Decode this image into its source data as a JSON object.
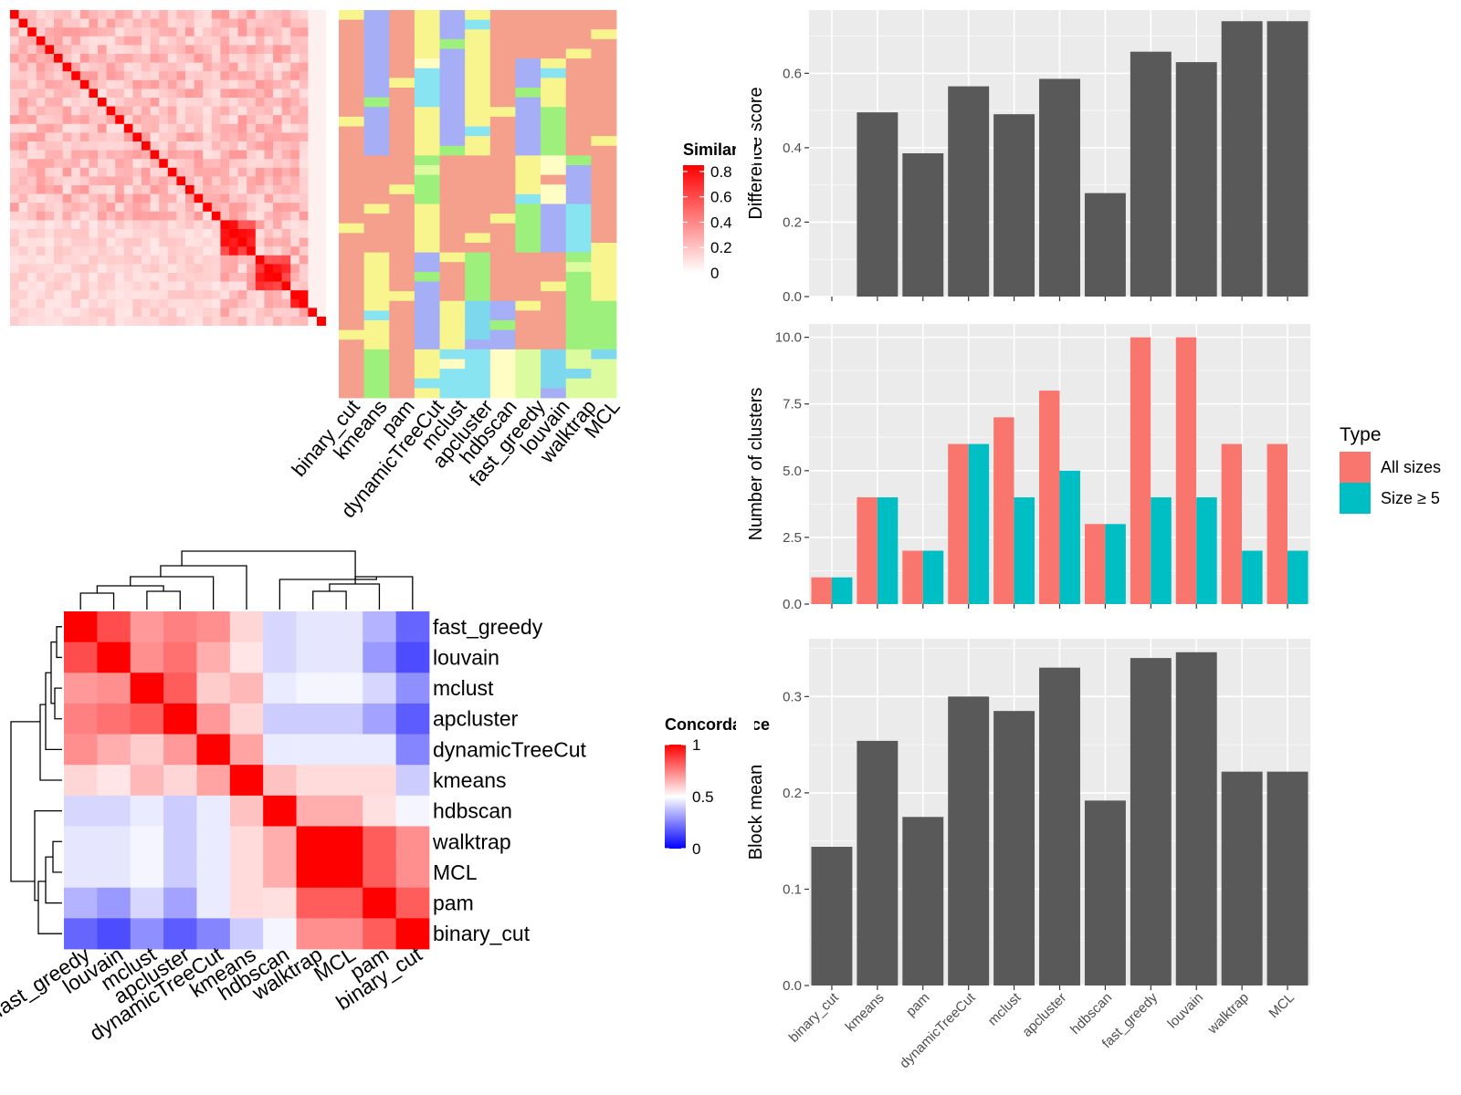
{
  "chart_data": [
    {
      "type": "heatmap",
      "panel": "similarity-matrix",
      "legend_title": "Similarity",
      "legend_ticks": [
        0,
        0.2,
        0.4,
        0.6,
        0.8
      ],
      "size": 36,
      "colors": {
        "low": "#ffffff",
        "high": "#ff0000"
      }
    },
    {
      "type": "heatmap",
      "panel": "partition-membership",
      "methods": [
        "binary_cut",
        "kmeans",
        "pam",
        "dynamicTreeCut",
        "mclust",
        "apcluster",
        "hdbscan",
        "fast_greedy",
        "louvain",
        "walktrap",
        "MCL"
      ],
      "palette": [
        "#f4a08c",
        "#a6aef5",
        "#f8f58e",
        "#9ef07c",
        "#88e4f0",
        "#dcfb9e",
        "#fffcc4",
        "#7dd8ee"
      ]
    },
    {
      "type": "heatmap",
      "panel": "concordance",
      "legend_title": "Concordance",
      "legend_ticks": [
        0,
        0.5,
        1
      ],
      "labels": [
        "fast_greedy",
        "louvain",
        "mclust",
        "apcluster",
        "dynamicTreeCut",
        "kmeans",
        "hdbscan",
        "walktrap",
        "MCL",
        "pam",
        "binary_cut"
      ],
      "values": [
        [
          1.0,
          0.85,
          0.7,
          0.75,
          0.72,
          0.58,
          0.42,
          0.45,
          0.45,
          0.35,
          0.2
        ],
        [
          0.85,
          1.0,
          0.72,
          0.78,
          0.66,
          0.55,
          0.42,
          0.45,
          0.45,
          0.3,
          0.15
        ],
        [
          0.7,
          0.72,
          1.0,
          0.82,
          0.6,
          0.64,
          0.46,
          0.48,
          0.48,
          0.42,
          0.28
        ],
        [
          0.75,
          0.78,
          0.82,
          1.0,
          0.7,
          0.58,
          0.4,
          0.4,
          0.4,
          0.32,
          0.18
        ],
        [
          0.72,
          0.66,
          0.6,
          0.7,
          1.0,
          0.68,
          0.46,
          0.46,
          0.46,
          0.46,
          0.26
        ],
        [
          0.58,
          0.55,
          0.64,
          0.58,
          0.68,
          1.0,
          0.62,
          0.57,
          0.57,
          0.57,
          0.4
        ],
        [
          0.42,
          0.42,
          0.46,
          0.4,
          0.46,
          0.62,
          1.0,
          0.66,
          0.66,
          0.56,
          0.48
        ],
        [
          0.45,
          0.45,
          0.48,
          0.4,
          0.46,
          0.57,
          0.66,
          1.0,
          1.0,
          0.82,
          0.72
        ],
        [
          0.45,
          0.45,
          0.48,
          0.4,
          0.46,
          0.57,
          0.66,
          1.0,
          1.0,
          0.82,
          0.72
        ],
        [
          0.35,
          0.3,
          0.42,
          0.32,
          0.46,
          0.57,
          0.56,
          0.82,
          0.82,
          1.0,
          0.82
        ],
        [
          0.2,
          0.15,
          0.28,
          0.18,
          0.26,
          0.4,
          0.48,
          0.72,
          0.72,
          0.82,
          1.0
        ]
      ]
    },
    {
      "type": "bar",
      "panel": "difference-score",
      "categories": [
        "binary_cut",
        "kmeans",
        "pam",
        "dynamicTreeCut",
        "mclust",
        "apcluster",
        "hdbscan",
        "fast_greedy",
        "louvain",
        "walktrap",
        "MCL"
      ],
      "values": [
        0,
        0.495,
        0.385,
        0.565,
        0.49,
        0.585,
        0.278,
        0.658,
        0.63,
        0.74,
        0.74
      ],
      "ylabel": "Difference score",
      "ylim": [
        0,
        0.77
      ],
      "yticks": [
        0.0,
        0.2,
        0.4,
        0.6
      ],
      "ytick_labels": [
        "0.0",
        "0.2",
        "0.4",
        "0.6"
      ]
    },
    {
      "type": "bar",
      "panel": "number-of-clusters",
      "categories": [
        "binary_cut",
        "kmeans",
        "pam",
        "dynamicTreeCut",
        "mclust",
        "apcluster",
        "hdbscan",
        "fast_greedy",
        "louvain",
        "walktrap",
        "MCL"
      ],
      "series": [
        {
          "name": "All sizes",
          "values": [
            1,
            4,
            2,
            6,
            7,
            8,
            3,
            10,
            10,
            6,
            6
          ],
          "color": "#f8766d"
        },
        {
          "name": "Size ≥ 5",
          "values": [
            1,
            4,
            2,
            6,
            4,
            5,
            3,
            4,
            4,
            2,
            2
          ],
          "color": "#00bfc4"
        }
      ],
      "ylabel": "Number of clusters",
      "ylim": [
        0,
        10.5
      ],
      "yticks": [
        0,
        2.5,
        5,
        7.5,
        10
      ],
      "ytick_labels": [
        "0.0",
        "2.5",
        "5.0",
        "7.5",
        "10.0"
      ],
      "legend_title": "Type",
      "legend": "right"
    },
    {
      "type": "bar",
      "panel": "block-mean",
      "categories": [
        "binary_cut",
        "kmeans",
        "pam",
        "dynamicTreeCut",
        "mclust",
        "apcluster",
        "hdbscan",
        "fast_greedy",
        "louvain",
        "walktrap",
        "MCL"
      ],
      "values": [
        0.144,
        0.254,
        0.175,
        0.3,
        0.285,
        0.33,
        0.192,
        0.34,
        0.346,
        0.222,
        0.222
      ],
      "ylabel": "Block mean",
      "ylim": [
        0,
        0.36
      ],
      "yticks": [
        0,
        0.1,
        0.2,
        0.3
      ],
      "ytick_labels": [
        "0.0",
        "0.1",
        "0.2",
        "0.3"
      ]
    }
  ]
}
